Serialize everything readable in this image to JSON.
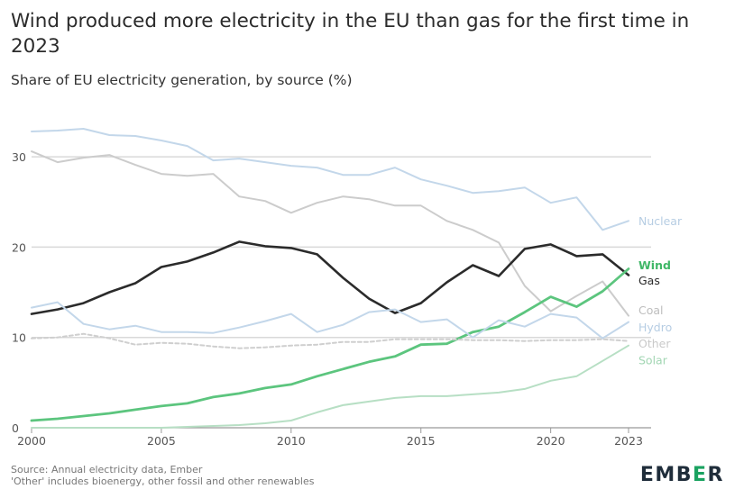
{
  "chart_data": {
    "type": "line",
    "title": "Wind produced more electricity in the EU than gas for the first time in 2023",
    "subtitle": "Share of EU electricity generation, by source (%)",
    "x": [
      2000,
      2001,
      2002,
      2003,
      2004,
      2005,
      2006,
      2007,
      2008,
      2009,
      2010,
      2011,
      2012,
      2013,
      2014,
      2015,
      2016,
      2017,
      2018,
      2019,
      2020,
      2021,
      2022,
      2023
    ],
    "xticks": [
      "2000",
      "2005",
      "2010",
      "2015",
      "2020",
      "2023"
    ],
    "xtick_values": [
      2000,
      2005,
      2010,
      2015,
      2020,
      2023
    ],
    "yticks": [
      "0",
      "10",
      "20",
      "30"
    ],
    "ytick_values": [
      0,
      10,
      20,
      30
    ],
    "xlim": [
      2000,
      2023
    ],
    "ylim": [
      0,
      33
    ],
    "grid": "horizontal",
    "series": [
      {
        "name": "Nuclear",
        "color": "#c3d7ea",
        "dash": false,
        "width": 2,
        "values": [
          32.8,
          32.9,
          33.1,
          32.4,
          32.3,
          31.8,
          31.2,
          29.6,
          29.8,
          29.4,
          29.0,
          28.8,
          28.0,
          28.0,
          28.8,
          27.5,
          26.8,
          26.0,
          26.2,
          26.6,
          24.9,
          25.5,
          21.9,
          22.9
        ]
      },
      {
        "name": "Coal",
        "color": "#cccccc",
        "dash": false,
        "width": 2,
        "values": [
          30.6,
          29.4,
          29.9,
          30.2,
          29.1,
          28.1,
          27.9,
          28.1,
          25.6,
          25.1,
          23.8,
          24.9,
          25.6,
          25.3,
          24.6,
          24.6,
          22.9,
          21.9,
          20.5,
          15.7,
          12.9,
          14.6,
          16.2,
          12.4
        ]
      },
      {
        "name": "Gas",
        "color": "#2b2b2b",
        "dash": false,
        "width": 2.6,
        "values": [
          12.6,
          13.1,
          13.8,
          15.0,
          16.0,
          17.8,
          18.4,
          19.4,
          20.6,
          20.1,
          19.9,
          19.2,
          16.6,
          14.3,
          12.7,
          13.8,
          16.1,
          18.0,
          16.8,
          19.8,
          20.3,
          19.0,
          19.2,
          16.9
        ]
      },
      {
        "name": "Wind",
        "color": "#5cc57e",
        "dash": false,
        "width": 2.8,
        "values": [
          0.8,
          1.0,
          1.3,
          1.6,
          2.0,
          2.4,
          2.7,
          3.4,
          3.8,
          4.4,
          4.8,
          5.7,
          6.5,
          7.3,
          7.9,
          9.2,
          9.3,
          10.6,
          11.2,
          12.8,
          14.5,
          13.4,
          15.1,
          17.6
        ]
      },
      {
        "name": "Hydro",
        "color": "#c3d7ea",
        "dash": false,
        "width": 2,
        "values": [
          13.3,
          13.9,
          11.5,
          10.9,
          11.3,
          10.6,
          10.6,
          10.5,
          11.1,
          11.8,
          12.6,
          10.6,
          11.4,
          12.8,
          13.1,
          11.7,
          12.0,
          10.0,
          11.9,
          11.2,
          12.6,
          12.2,
          9.9,
          11.7
        ]
      },
      {
        "name": "Other",
        "color": "#cfcfcf",
        "dash": true,
        "width": 2,
        "values": [
          9.9,
          10.0,
          10.4,
          9.9,
          9.2,
          9.4,
          9.3,
          9.0,
          8.8,
          8.9,
          9.1,
          9.2,
          9.5,
          9.5,
          9.8,
          9.8,
          9.8,
          9.7,
          9.7,
          9.6,
          9.7,
          9.7,
          9.8,
          9.6
        ]
      },
      {
        "name": "Solar",
        "color": "#b7dfc4",
        "dash": false,
        "width": 2,
        "values": [
          0.0,
          0.0,
          0.0,
          0.0,
          0.0,
          0.0,
          0.1,
          0.2,
          0.3,
          0.5,
          0.8,
          1.7,
          2.5,
          2.9,
          3.3,
          3.5,
          3.5,
          3.7,
          3.9,
          4.3,
          5.2,
          5.7,
          7.4,
          9.1
        ]
      }
    ],
    "labels": [
      {
        "text": "Nuclear",
        "series": "Nuclear",
        "color": "#b6cde3",
        "y": 22.9
      },
      {
        "text": "Wind",
        "series": "Wind",
        "color": "#3fb767",
        "y": 18.0,
        "bold": true
      },
      {
        "text": "Gas",
        "series": "Gas",
        "color": "#2b2b2b",
        "y": 16.3
      },
      {
        "text": "Coal",
        "series": "Coal",
        "color": "#bdbdbd",
        "y": 13.0
      },
      {
        "text": "Hydro",
        "series": "Hydro",
        "color": "#b6cde3",
        "y": 11.1
      },
      {
        "text": "Other",
        "series": "Other",
        "color": "#c9c9c9",
        "y": 9.3
      },
      {
        "text": "Solar",
        "series": "Solar",
        "color": "#a2d6b3",
        "y": 7.5
      }
    ]
  },
  "footer": {
    "source": "Source: Annual electricity data, Ember",
    "note": "'Other' includes bioenergy, other fossil and other renewables"
  },
  "logo": {
    "prefix": "EMB",
    "accent": "E",
    "suffix": "R"
  }
}
